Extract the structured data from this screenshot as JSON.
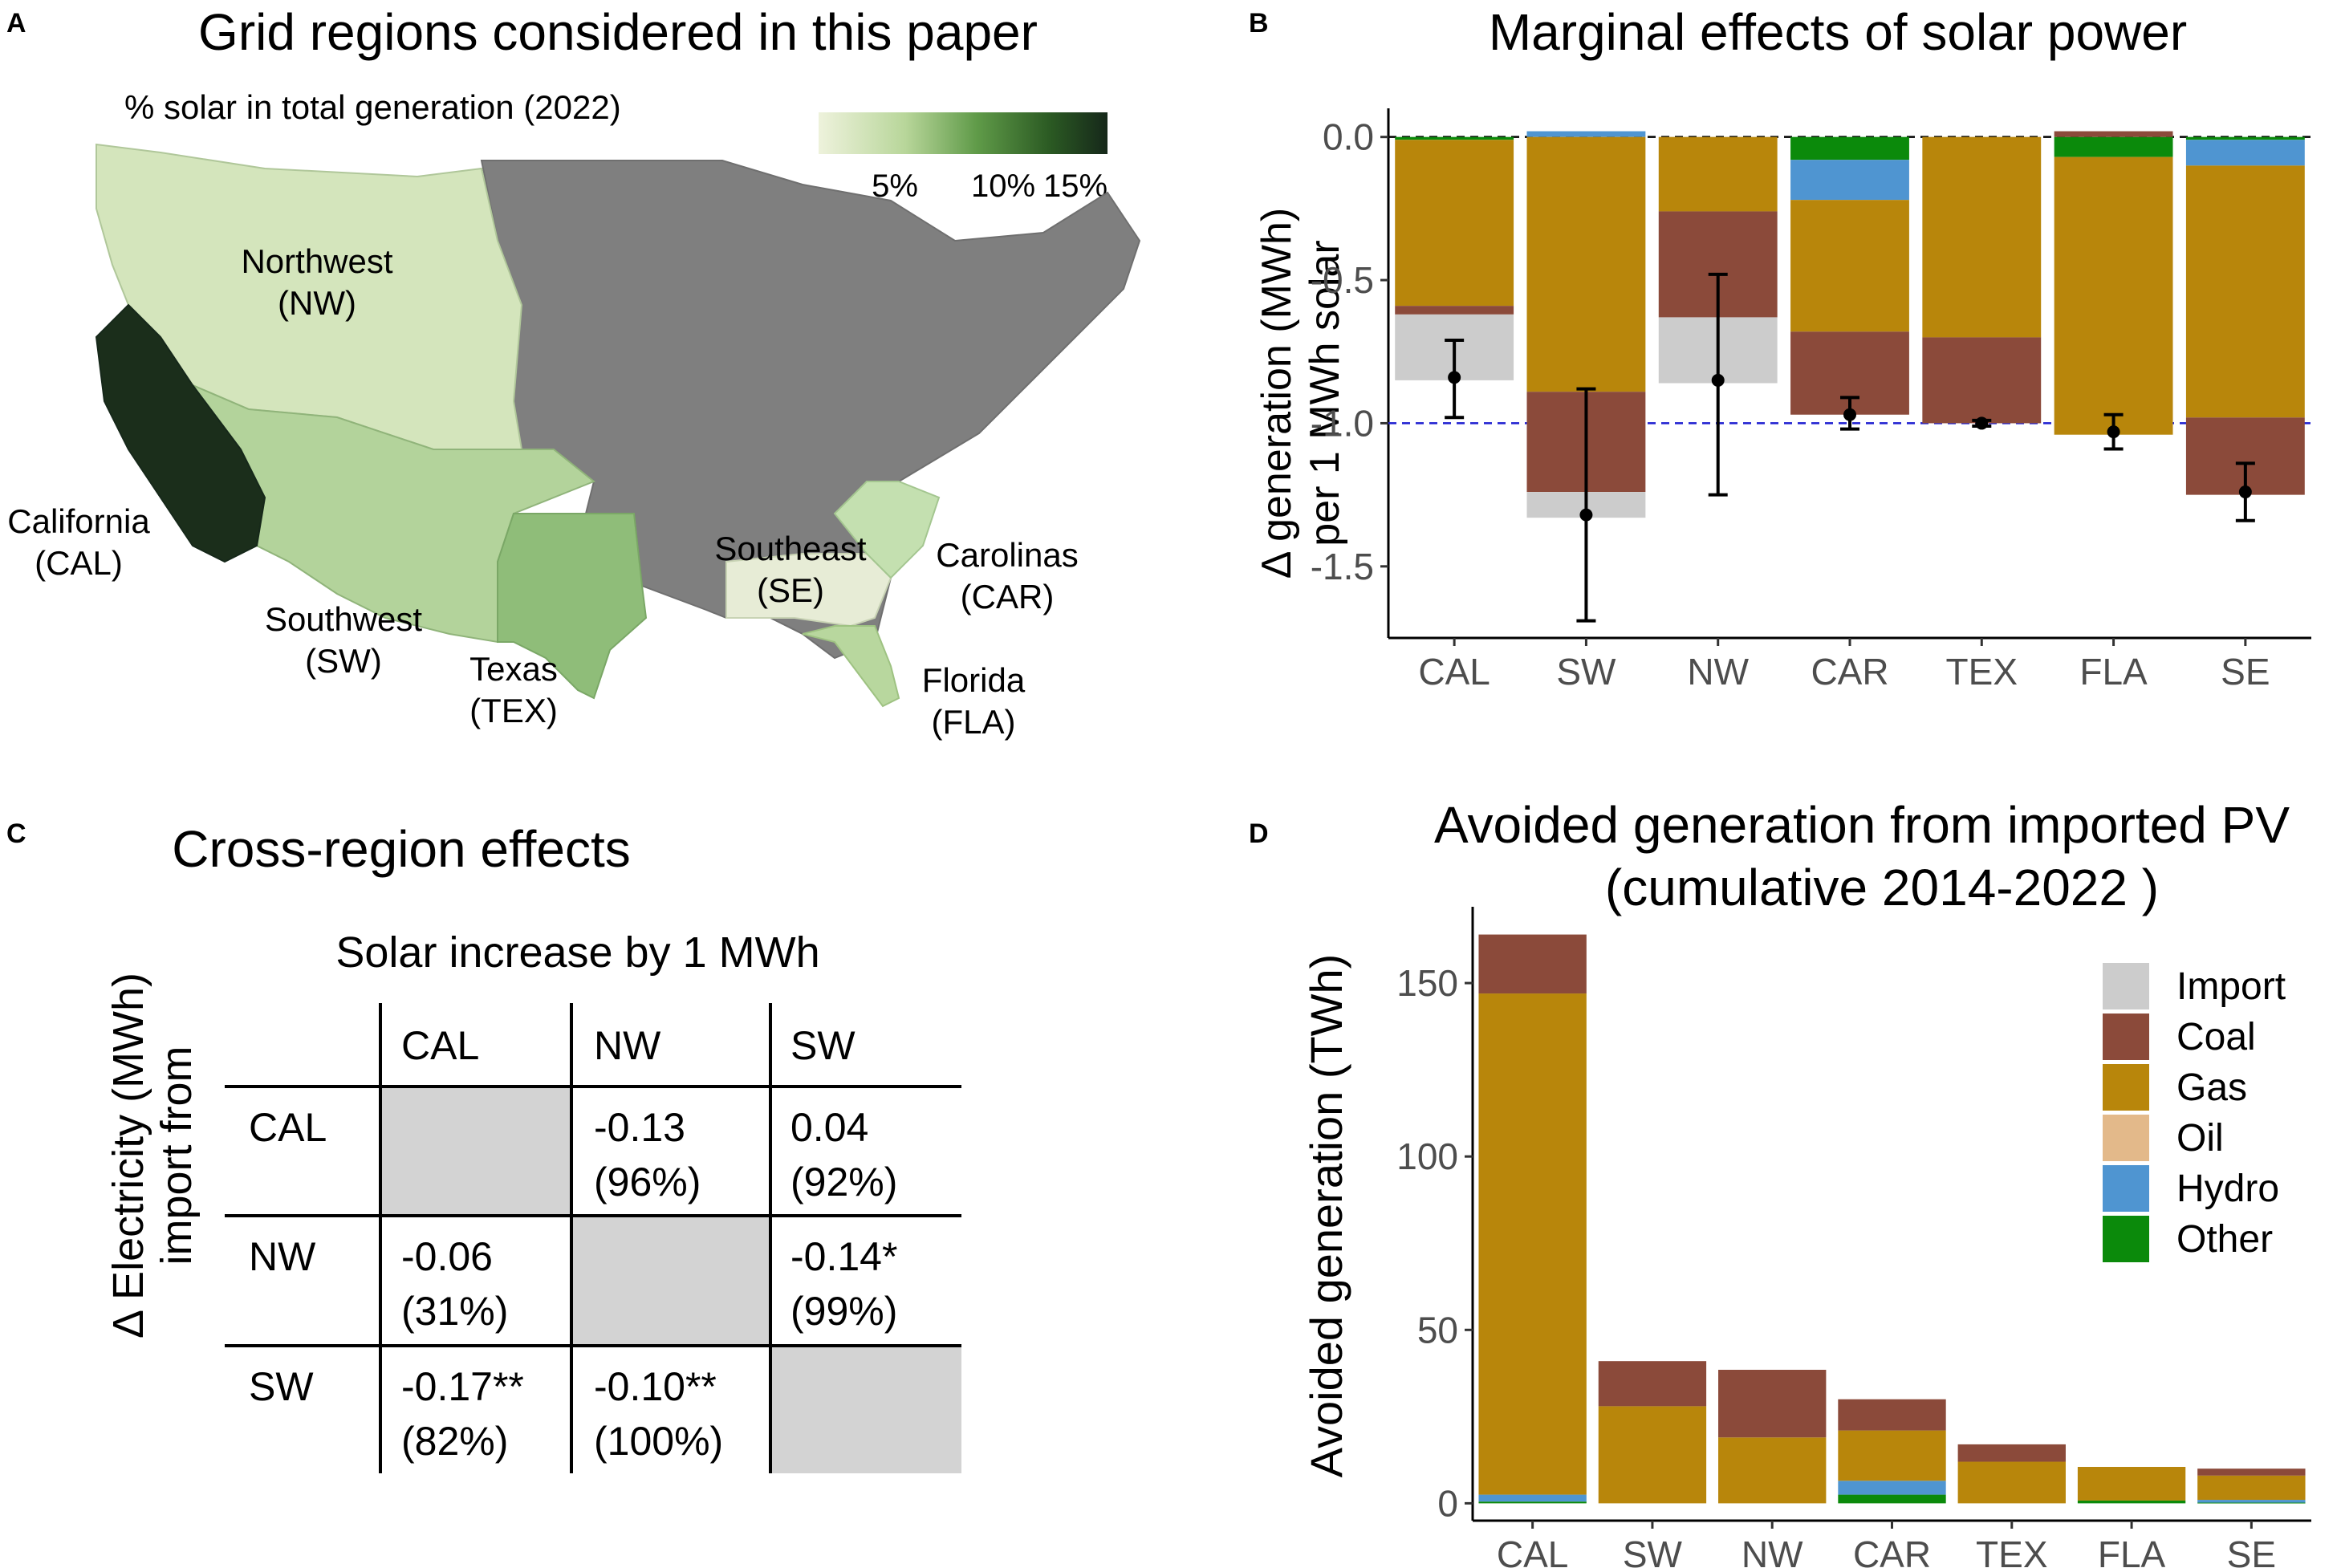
{
  "panel_letters": {
    "a": "A",
    "b": "B",
    "c": "C",
    "d": "D"
  },
  "colors": {
    "import": "#cccccc",
    "coal": "#8b4a3a",
    "gas": "#b8860b",
    "oil": "#e3b98a",
    "hydro": "#4f95d1",
    "other": "#0b8a0b",
    "state_gray": "#808080",
    "ref_line": "#1f1fd0"
  },
  "panel_a": {
    "title": "Grid regions considered in this paper",
    "colorbar_title": "% solar in total generation (2022)",
    "colorbar_ticks": [
      "5%",
      "10%",
      "15%"
    ],
    "regions": [
      {
        "name": "Northwest",
        "code": "(NW)"
      },
      {
        "name": "California",
        "code": "(CAL)"
      },
      {
        "name": "Southwest",
        "code": "(SW)"
      },
      {
        "name": "Texas",
        "code": "(TEX)"
      },
      {
        "name": "Southeast",
        "code": "(SE)"
      },
      {
        "name": "Carolinas",
        "code": "(CAR)"
      },
      {
        "name": "Florida",
        "code": "(FLA)"
      }
    ]
  },
  "panel_c": {
    "title": "Cross-region effects",
    "column_group_label": "Solar increase by 1 MWh",
    "row_axis_label_line1": "Δ Electricity (MWh)",
    "row_axis_label_line2": "import from",
    "columns": [
      "CAL",
      "NW",
      "SW"
    ],
    "rows": [
      {
        "label": "CAL",
        "cells": [
          null,
          {
            "value": "-0.13",
            "pct": "(96%)"
          },
          {
            "value": "0.04",
            "pct": "(92%)"
          }
        ]
      },
      {
        "label": "NW",
        "cells": [
          {
            "value": "-0.06",
            "pct": "(31%)"
          },
          null,
          {
            "value": "-0.14*",
            "pct": "(99%)"
          }
        ]
      },
      {
        "label": "SW",
        "cells": [
          {
            "value": "-0.17**",
            "pct": "(82%)"
          },
          {
            "value": "-0.10**",
            "pct": "(100%)"
          },
          null
        ]
      }
    ]
  },
  "chart_data": [
    {
      "id": "B",
      "type": "bar",
      "stacked": true,
      "title": "Marginal effects of solar power",
      "ylabel_line1": "Δ generation (MWh)",
      "ylabel_line2": "per 1 MWh solar",
      "categories": [
        "CAL",
        "SW",
        "NW",
        "CAR",
        "TEX",
        "FLA",
        "SE"
      ],
      "ylim": [
        -1.75,
        0.1
      ],
      "yticks": [
        0.0,
        -0.5,
        -1.0,
        -1.5
      ],
      "ytick_labels": [
        "0.0",
        "-0.5",
        "-1.0",
        "-1.5"
      ],
      "reference_lines": [
        {
          "y": 0.0,
          "color": "black",
          "style": "dashed"
        },
        {
          "y": -1.0,
          "color": "blue",
          "style": "dashed"
        }
      ],
      "series": [
        {
          "name": "Other",
          "key": "other",
          "values": [
            -0.01,
            0.0,
            0.0,
            -0.08,
            0.0,
            -0.07,
            -0.01
          ]
        },
        {
          "name": "Hydro",
          "key": "hydro",
          "values": [
            0.0,
            0.02,
            0.0,
            -0.14,
            0.0,
            0.0,
            -0.09
          ]
        },
        {
          "name": "Oil",
          "key": "oil",
          "values": [
            0.0,
            0.0,
            0.0,
            0.0,
            0.0,
            0.0,
            0.0
          ]
        },
        {
          "name": "Gas",
          "key": "gas",
          "values": [
            -0.58,
            -0.89,
            -0.26,
            -0.46,
            -0.7,
            -0.97,
            -0.88
          ]
        },
        {
          "name": "Coal",
          "key": "coal",
          "values": [
            -0.03,
            -0.35,
            -0.37,
            -0.29,
            -0.3,
            0.02,
            -0.27
          ]
        },
        {
          "name": "Import",
          "key": "import",
          "values": [
            -0.23,
            -0.09,
            -0.23,
            0.0,
            0.0,
            0.0,
            0.0
          ]
        }
      ],
      "point_estimate": [
        -0.84,
        -1.32,
        -0.85,
        -0.97,
        -1.0,
        -1.03,
        -1.24
      ],
      "ci_low": [
        -0.98,
        -1.69,
        -1.25,
        -1.02,
        -1.01,
        -1.09,
        -1.34
      ],
      "ci_high": [
        -0.71,
        -0.88,
        -0.48,
        -0.91,
        -0.99,
        -0.97,
        -1.14
      ]
    },
    {
      "id": "D",
      "type": "bar",
      "stacked": true,
      "title_line1": "Avoided generation from imported PV",
      "title_line2": "(cumulative 2014-2022 )",
      "ylabel": "Avoided generation (TWh)",
      "categories": [
        "CAL",
        "SW",
        "NW",
        "CAR",
        "TEX",
        "FLA",
        "SE"
      ],
      "ylim": [
        -5,
        172
      ],
      "yticks": [
        0,
        50,
        100,
        150
      ],
      "ytick_labels": [
        "0",
        "50",
        "100",
        "150"
      ],
      "legend_position": "right",
      "legend": [
        "Import",
        "Coal",
        "Gas",
        "Oil",
        "Hydro",
        "Other"
      ],
      "series": [
        {
          "name": "Other",
          "key": "other",
          "values": [
            0.5,
            0.0,
            0.0,
            2.5,
            0.0,
            0.8,
            0.2
          ]
        },
        {
          "name": "Hydro",
          "key": "hydro",
          "values": [
            2.0,
            0.0,
            0.0,
            4.0,
            0.0,
            0.0,
            0.8
          ]
        },
        {
          "name": "Oil",
          "key": "oil",
          "values": [
            0.0,
            0.0,
            0.0,
            0.0,
            0.0,
            0.0,
            0.0
          ]
        },
        {
          "name": "Gas",
          "key": "gas",
          "values": [
            144.5,
            28.0,
            19.0,
            14.5,
            12.0,
            9.7,
            7.0
          ]
        },
        {
          "name": "Coal",
          "key": "coal",
          "values": [
            17.0,
            13.0,
            19.5,
            9.0,
            5.0,
            0.0,
            2.0
          ]
        },
        {
          "name": "Import",
          "key": "import",
          "values": [
            0.0,
            0.0,
            0.0,
            0.0,
            0.0,
            0.0,
            0.0
          ]
        }
      ]
    }
  ]
}
